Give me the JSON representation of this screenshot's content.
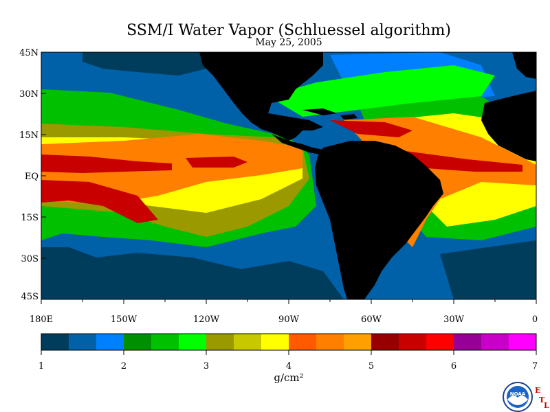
{
  "title": "SSM/I Water Vapor (Schluessel algorithm)",
  "date": "May 25, 2005",
  "lat_labels": [
    "45N",
    "30N",
    "15N",
    "EQ",
    "15S",
    "30S",
    "45S"
  ],
  "lon_labels": [
    "180E",
    "150W",
    "120W",
    "90W",
    "60W",
    "30W",
    "0"
  ],
  "colorbar": {
    "min": 1,
    "max": 7,
    "tick_labels": [
      "1",
      "2",
      "3",
      "4",
      "5",
      "6",
      "7"
    ],
    "unit": "g/cm²",
    "colors": [
      "#003d5c",
      "#0060a8",
      "#0080ff",
      "#008f00",
      "#00c000",
      "#00ff00",
      "#9a9a00",
      "#c8c800",
      "#ffff00",
      "#ff5a00",
      "#ff7f00",
      "#ffa000",
      "#960000",
      "#c80000",
      "#ff0000",
      "#960096",
      "#c800c8",
      "#ff00ff"
    ]
  },
  "logo": {
    "name": "NOAA",
    "side_letters": [
      "E",
      "T",
      "L"
    ]
  },
  "map_colors": {
    "land": "#000000",
    "ocean_low": "#0060a8",
    "ocean_dark": "#003d5c"
  }
}
